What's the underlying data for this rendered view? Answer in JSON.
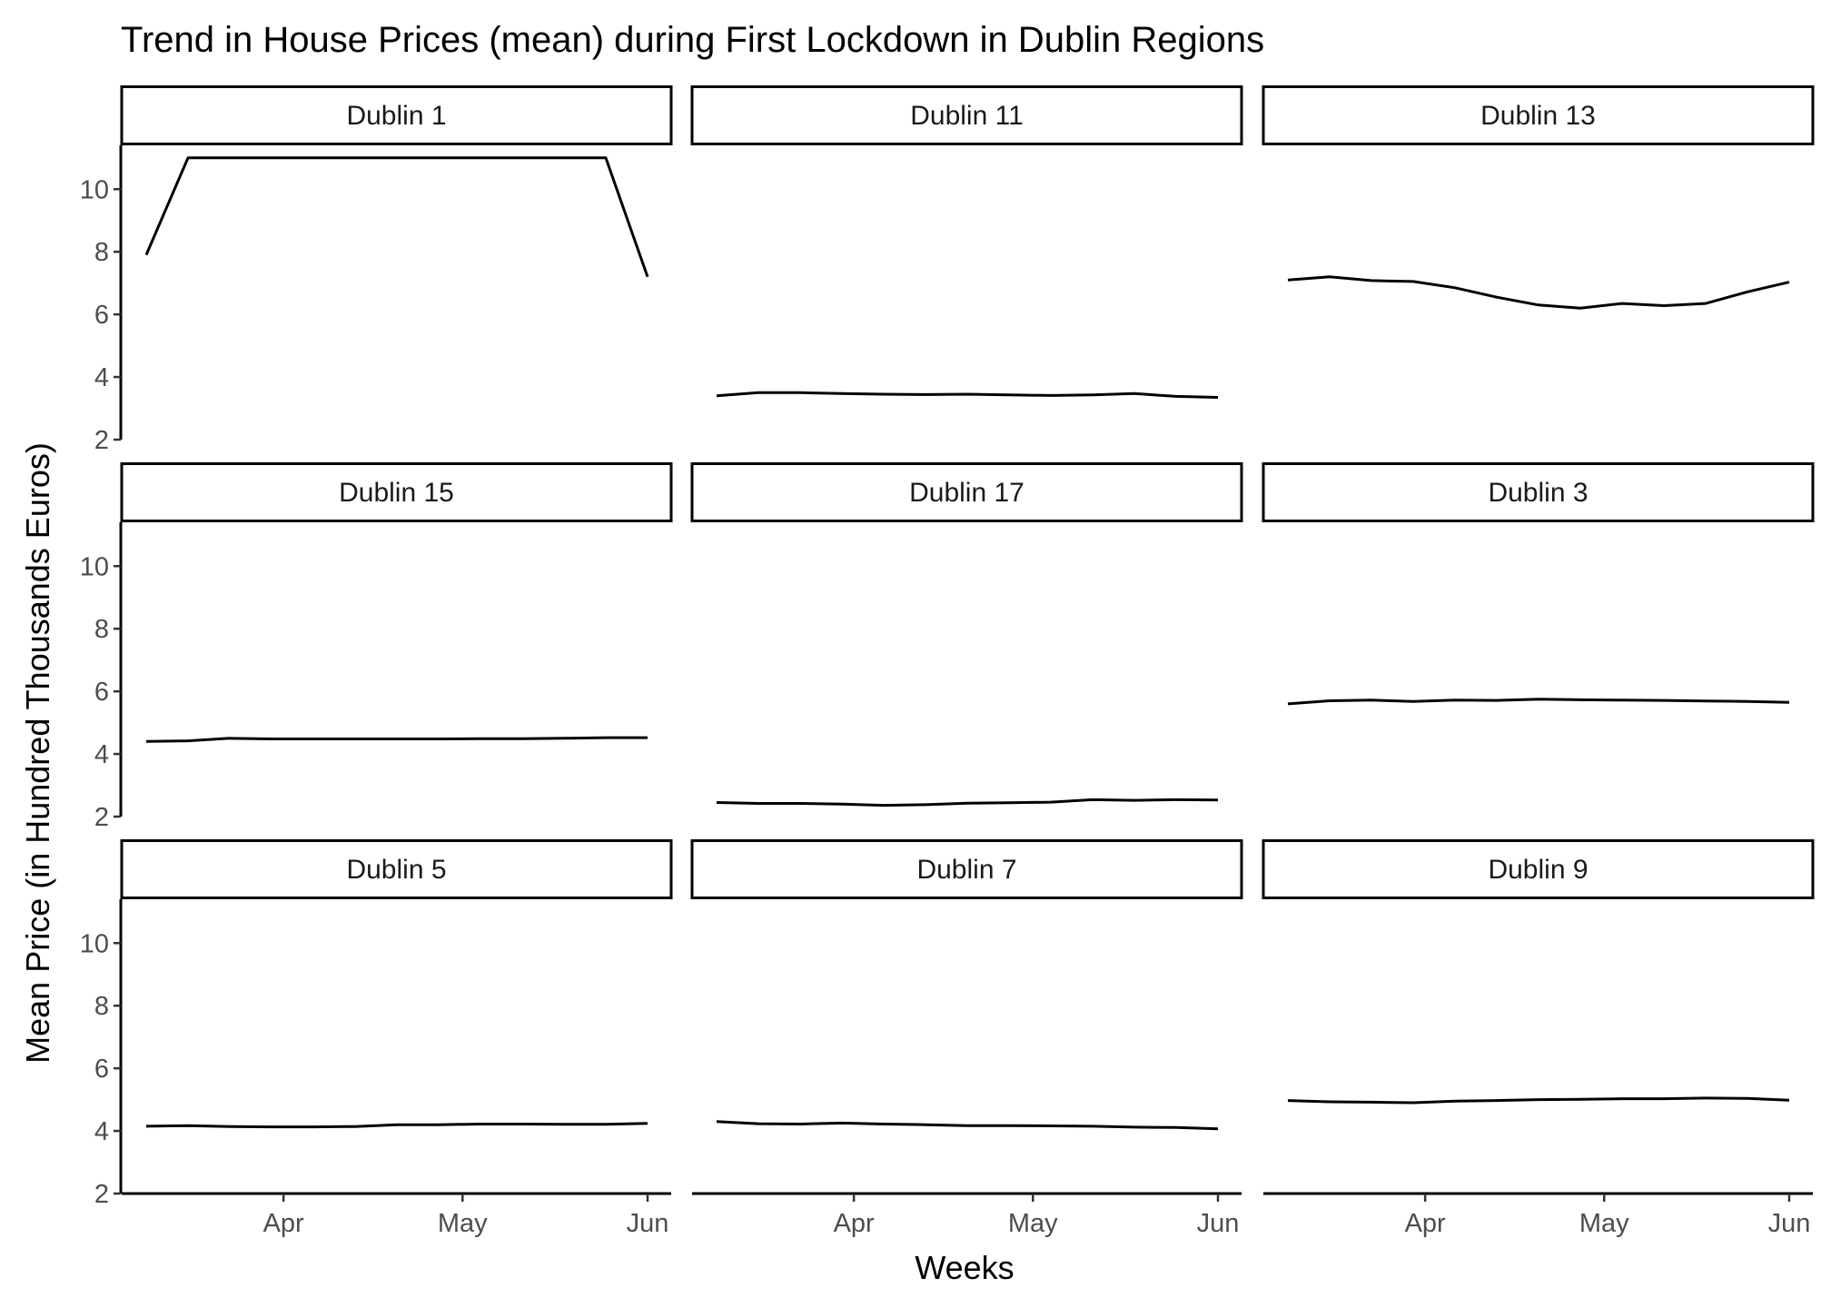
{
  "chart_data": {
    "type": "line",
    "title": "Trend in House Prices (mean) during First Lockdown in Dublin Regions",
    "xlabel": "Weeks",
    "ylabel": "Mean Price (in Hundred Thousands Euros)",
    "x_ticks": [
      "Apr",
      "May",
      "Jun"
    ],
    "y_ticks": [
      2,
      4,
      6,
      8,
      10
    ],
    "ylim": [
      2,
      11.4
    ],
    "x": [
      "2020-03-09",
      "2020-03-16",
      "2020-03-23",
      "2020-03-30",
      "2020-04-06",
      "2020-04-13",
      "2020-04-20",
      "2020-04-27",
      "2020-05-04",
      "2020-05-11",
      "2020-05-18",
      "2020-05-25",
      "2020-06-01"
    ],
    "facets": [
      {
        "name": "Dublin 1",
        "values": [
          7.9,
          11.0,
          11.0,
          11.0,
          11.0,
          11.0,
          11.0,
          11.0,
          11.0,
          11.0,
          11.0,
          11.0,
          7.2
        ]
      },
      {
        "name": "Dublin 11",
        "values": [
          3.4,
          3.5,
          3.5,
          3.47,
          3.45,
          3.44,
          3.45,
          3.43,
          3.41,
          3.43,
          3.47,
          3.38,
          3.35
        ]
      },
      {
        "name": "Dublin 13",
        "values": [
          7.1,
          7.2,
          7.08,
          7.05,
          6.85,
          6.55,
          6.3,
          6.2,
          6.35,
          6.28,
          6.35,
          6.72,
          7.03
        ]
      },
      {
        "name": "Dublin 15",
        "values": [
          4.4,
          4.42,
          4.5,
          4.48,
          4.48,
          4.48,
          4.48,
          4.48,
          4.49,
          4.49,
          4.5,
          4.52,
          4.52
        ]
      },
      {
        "name": "Dublin 17",
        "values": [
          2.45,
          2.42,
          2.42,
          2.4,
          2.36,
          2.38,
          2.43,
          2.44,
          2.46,
          2.54,
          2.52,
          2.54,
          2.53
        ]
      },
      {
        "name": "Dublin 3",
        "values": [
          5.6,
          5.7,
          5.72,
          5.68,
          5.72,
          5.71,
          5.75,
          5.73,
          5.72,
          5.71,
          5.69,
          5.68,
          5.65
        ]
      },
      {
        "name": "Dublin 5",
        "values": [
          4.15,
          4.17,
          4.14,
          4.13,
          4.13,
          4.14,
          4.2,
          4.2,
          4.22,
          4.22,
          4.21,
          4.21,
          4.24
        ]
      },
      {
        "name": "Dublin 7",
        "values": [
          4.3,
          4.23,
          4.22,
          4.25,
          4.22,
          4.2,
          4.17,
          4.17,
          4.16,
          4.15,
          4.12,
          4.11,
          4.07
        ]
      },
      {
        "name": "Dublin 9",
        "values": [
          4.97,
          4.93,
          4.92,
          4.9,
          4.95,
          4.97,
          5.0,
          5.01,
          5.03,
          5.03,
          5.05,
          5.04,
          4.98
        ]
      }
    ]
  }
}
